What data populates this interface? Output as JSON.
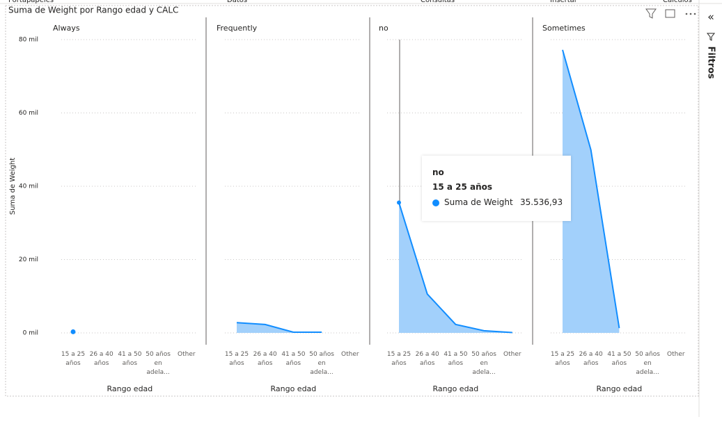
{
  "ribbon": [
    "Portapapeles",
    "Datos",
    "Consultas",
    "Insertar",
    "Cálculos"
  ],
  "visual": {
    "title": "Suma de Weight por Rango edad y CALC"
  },
  "side_pane": {
    "title": "Filtros"
  },
  "chart_data": [
    {
      "type": "area",
      "title": "Always",
      "categories": [
        "15 a 25 años",
        "26 a 40 años",
        "41 a 50 años",
        "50 años en adela...",
        "Other"
      ],
      "values": [
        300,
        null,
        null,
        null,
        null
      ],
      "color": "#118dff",
      "area_color": "#a2d0fb",
      "x_label": "Rango edad",
      "y_label": "Suma de Weight",
      "ylim": [
        0,
        80000
      ],
      "yticks": [
        {
          "value": 0,
          "label": "0 mil"
        },
        {
          "value": 20000,
          "label": "20 mil"
        },
        {
          "value": 40000,
          "label": "40 mil"
        },
        {
          "value": 60000,
          "label": "60 mil"
        },
        {
          "value": 80000,
          "label": "80 mil"
        }
      ],
      "grid": true
    },
    {
      "type": "area",
      "title": "Frequently",
      "categories": [
        "15 a 25 años",
        "26 a 40 años",
        "41 a 50 años",
        "50 años en adela...",
        "Other"
      ],
      "values": [
        2800,
        2300,
        200,
        200,
        null
      ],
      "color": "#118dff",
      "area_color": "#a2d0fb",
      "x_label": "Rango edad"
    },
    {
      "type": "area",
      "title": "no",
      "categories": [
        "15 a 25 años",
        "26 a 40 años",
        "41 a 50 años",
        "50 años en adela...",
        "Other"
      ],
      "values": [
        35536.93,
        10600,
        2300,
        600,
        100
      ],
      "color": "#118dff",
      "area_color": "#a2d0fb",
      "x_label": "Rango edad"
    },
    {
      "type": "area",
      "title": "Sometimes",
      "categories": [
        "15 a 25 años",
        "26 a 40 años",
        "41 a 50 años",
        "50 años en adela...",
        "Other"
      ],
      "values": [
        77200,
        49900,
        1300,
        null,
        null
      ],
      "color": "#118dff",
      "area_color": "#a2d0fb",
      "x_label": "Rango edad"
    }
  ],
  "tooltip": {
    "title": "no",
    "category": "15 a 25 años",
    "series": "Suma de Weight",
    "value": 35536.93,
    "label": "35.536,93"
  }
}
